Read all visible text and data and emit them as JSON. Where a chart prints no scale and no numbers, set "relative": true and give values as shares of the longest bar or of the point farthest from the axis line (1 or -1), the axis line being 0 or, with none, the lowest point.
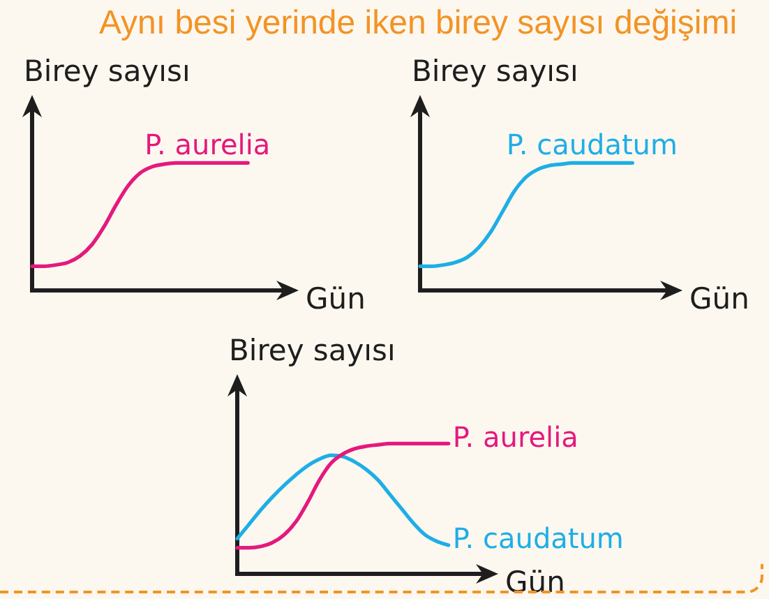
{
  "chart_data": [
    {
      "type": "line",
      "title": "Aynı besi yerinde iken birey sayısı değişimi",
      "ylabel": "Birey sayısı",
      "xlabel": "Gün",
      "relative": true,
      "marker": "none",
      "categories": [
        null,
        null,
        null,
        null,
        null,
        null,
        null,
        null,
        null,
        null,
        null,
        null,
        null,
        null,
        null,
        null,
        null,
        null,
        null,
        null,
        null,
        null,
        null
      ],
      "series": [
        {
          "name": "P. aurelia",
          "color": "#e5197d",
          "values": [
            0.19,
            0.19,
            0.2,
            0.22,
            0.27,
            0.36,
            0.5,
            0.67,
            0.82,
            0.92,
            0.97,
            0.99,
            1,
            1,
            1,
            1,
            1,
            1,
            1,
            null,
            null,
            null,
            null
          ]
        }
      ]
    },
    {
      "type": "line",
      "ylabel": "Birey sayısı",
      "xlabel": "Gün",
      "relative": true,
      "marker": "none",
      "categories": [
        null,
        null,
        null,
        null,
        null,
        null,
        null,
        null,
        null,
        null,
        null,
        null,
        null,
        null,
        null,
        null,
        null,
        null,
        null,
        null,
        null,
        null,
        null
      ],
      "series": [
        {
          "name": "P. caudatum",
          "color": "#1eaee6",
          "values": [
            0.19,
            0.19,
            0.2,
            0.22,
            0.26,
            0.34,
            0.46,
            0.62,
            0.78,
            0.89,
            0.95,
            0.98,
            0.99,
            1,
            1,
            1,
            1,
            1,
            1,
            null,
            null,
            null,
            null
          ]
        }
      ]
    },
    {
      "type": "line",
      "ylabel": "Birey sayısı",
      "xlabel": "Gün",
      "relative": true,
      "marker": "none",
      "categories": [
        null,
        null,
        null,
        null,
        null,
        null,
        null,
        null,
        null,
        null,
        null,
        null,
        null,
        null,
        null,
        null,
        null,
        null,
        null,
        null,
        null,
        null,
        null
      ],
      "series": [
        {
          "name": "P. aurelia",
          "color": "#e5197d",
          "values": [
            0.2,
            0.2,
            0.21,
            0.24,
            0.3,
            0.4,
            0.55,
            0.72,
            0.85,
            0.92,
            0.96,
            0.98,
            0.99,
            1,
            1,
            1,
            1,
            1,
            1,
            null,
            null,
            null,
            null
          ]
        },
        {
          "name": "P. caudatum",
          "color": "#1eaee6",
          "values": [
            0.27,
            0.38,
            0.49,
            0.59,
            0.68,
            0.76,
            0.83,
            0.88,
            0.91,
            0.9,
            0.86,
            0.8,
            0.72,
            0.61,
            0.5,
            0.39,
            0.3,
            0.25,
            0.22,
            null,
            null,
            null,
            null
          ]
        }
      ]
    }
  ]
}
